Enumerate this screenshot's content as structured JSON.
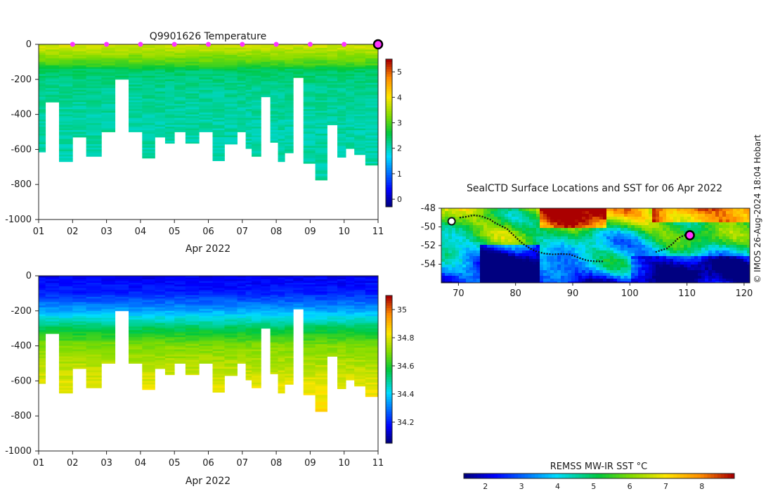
{
  "chart_data": [
    {
      "type": "heatmap",
      "panel": "temperature-section",
      "title": "Q9901626  Temperature",
      "xlabel": "Apr 2022",
      "ylabel": "",
      "xticks": [
        "01",
        "02",
        "03",
        "04",
        "05",
        "06",
        "07",
        "08",
        "09",
        "10",
        "11"
      ],
      "xlim": [
        1,
        11
      ],
      "ylim": [
        -1000,
        0
      ],
      "yticks": [
        0,
        -200,
        -400,
        -600,
        -800,
        -1000
      ],
      "colorbar": {
        "range": [
          -0.3,
          5.5
        ],
        "ticks": [
          "0",
          "1",
          "2",
          "3",
          "4",
          "5"
        ],
        "tick_values": [
          0,
          1,
          2,
          3,
          4,
          5
        ],
        "colormap": "jet-like"
      },
      "grid": false,
      "marker_days": [
        2,
        3,
        4,
        5,
        6,
        7,
        8,
        9,
        10
      ],
      "marker_color": "#ff33ff",
      "current_marker_day": 11,
      "profiles": [
        {
          "t": 1.05,
          "depth": 615
        },
        {
          "t": 1.35,
          "depth": 330
        },
        {
          "t": 1.85,
          "depth": 670
        },
        {
          "t": 2.15,
          "depth": 530
        },
        {
          "t": 2.65,
          "depth": 640
        },
        {
          "t": 3.05,
          "depth": 500
        },
        {
          "t": 3.45,
          "depth": 200
        },
        {
          "t": 3.85,
          "depth": 500
        },
        {
          "t": 4.25,
          "depth": 650
        },
        {
          "t": 4.6,
          "depth": 530
        },
        {
          "t": 4.85,
          "depth": 565
        },
        {
          "t": 5.15,
          "depth": 500
        },
        {
          "t": 5.5,
          "depth": 565
        },
        {
          "t": 5.95,
          "depth": 500
        },
        {
          "t": 6.3,
          "depth": 665
        },
        {
          "t": 6.65,
          "depth": 570
        },
        {
          "t": 7.05,
          "depth": 500
        },
        {
          "t": 7.15,
          "depth": 595
        },
        {
          "t": 7.4,
          "depth": 640
        },
        {
          "t": 7.7,
          "depth": 300
        },
        {
          "t": 7.95,
          "depth": 560
        },
        {
          "t": 8.15,
          "depth": 670
        },
        {
          "t": 8.35,
          "depth": 620
        },
        {
          "t": 8.65,
          "depth": 190
        },
        {
          "t": 8.95,
          "depth": 680
        },
        {
          "t": 9.35,
          "depth": 775
        },
        {
          "t": 9.65,
          "depth": 460
        },
        {
          "t": 9.95,
          "depth": 645
        },
        {
          "t": 10.15,
          "depth": 595
        },
        {
          "t": 10.45,
          "depth": 630
        },
        {
          "t": 10.8,
          "depth": 690
        }
      ],
      "temperature_profile_typical": [
        {
          "depth": 0,
          "value": 3.8
        },
        {
          "depth": 60,
          "value": 3.4
        },
        {
          "depth": 110,
          "value": 3.0
        },
        {
          "depth": 150,
          "value": 2.4
        },
        {
          "depth": 250,
          "value": 2.2
        },
        {
          "depth": 450,
          "value": 2.1
        },
        {
          "depth": 700,
          "value": 2.1
        }
      ]
    },
    {
      "type": "heatmap",
      "panel": "salinity-section",
      "title": "",
      "xlabel": "Apr 2022",
      "ylabel": "",
      "xticks": [
        "01",
        "02",
        "03",
        "04",
        "05",
        "06",
        "07",
        "08",
        "09",
        "10",
        "11"
      ],
      "xlim": [
        1,
        11
      ],
      "ylim": [
        -1000,
        0
      ],
      "yticks": [
        0,
        -200,
        -400,
        -600,
        -800,
        -1000
      ],
      "colorbar": {
        "range": [
          34.05,
          35.1
        ],
        "ticks": [
          "34.2",
          "34.4",
          "34.6",
          "34.8",
          "35"
        ],
        "tick_values": [
          34.2,
          34.4,
          34.6,
          34.8,
          35.0
        ],
        "colormap": "jet-like"
      },
      "grid": false,
      "salinity_profile_typical": [
        {
          "depth": 0,
          "value": 34.15
        },
        {
          "depth": 100,
          "value": 34.2
        },
        {
          "depth": 200,
          "value": 34.35
        },
        {
          "depth": 300,
          "value": 34.55
        },
        {
          "depth": 400,
          "value": 34.7
        },
        {
          "depth": 500,
          "value": 34.75
        },
        {
          "depth": 600,
          "value": 34.8
        },
        {
          "depth": 750,
          "value": 34.85
        }
      ]
    },
    {
      "type": "heatmap",
      "panel": "sst-map",
      "title": "SealCTD Surface Locations and SST for 06 Apr 2022",
      "xlabel": "",
      "ylabel": "",
      "xticks": [
        "70",
        "80",
        "90",
        "100",
        "110",
        "120"
      ],
      "xtick_values": [
        70,
        80,
        90,
        100,
        110,
        120
      ],
      "yticks": [
        "-48",
        "-50",
        "-52",
        "-54"
      ],
      "ytick_values": [
        -48,
        -50,
        -52,
        -54
      ],
      "xlim": [
        67,
        121
      ],
      "ylim": [
        -56,
        -48
      ],
      "track_color": "#111111",
      "track": [
        [
          70.2,
          -49.0
        ],
        [
          71.5,
          -48.9
        ],
        [
          72.6,
          -48.75
        ],
        [
          74.0,
          -48.85
        ],
        [
          75.5,
          -49.2
        ],
        [
          76.5,
          -49.6
        ],
        [
          77.5,
          -49.9
        ],
        [
          78.5,
          -50.2
        ],
        [
          79.5,
          -50.8
        ],
        [
          80.5,
          -51.4
        ],
        [
          81.5,
          -51.9
        ],
        [
          82.5,
          -52.3
        ],
        [
          83.5,
          -52.6
        ],
        [
          85.0,
          -52.85
        ],
        [
          86.5,
          -52.95
        ],
        [
          88.0,
          -52.9
        ],
        [
          89.5,
          -52.95
        ],
        [
          91.0,
          -53.3
        ],
        [
          92.5,
          -53.6
        ],
        [
          94.0,
          -53.7
        ],
        [
          95.5,
          -53.7
        ]
      ],
      "track_east": [
        [
          104.5,
          -52.7
        ],
        [
          105.5,
          -52.5
        ],
        [
          106.5,
          -52.3
        ],
        [
          107.5,
          -51.8
        ],
        [
          108.5,
          -51.2
        ],
        [
          109.5,
          -50.9
        ],
        [
          110.5,
          -50.9
        ]
      ],
      "start_location": [
        68.8,
        -49.4
      ],
      "current_location": [
        110.5,
        -50.9
      ],
      "current_color": "#ff33ff",
      "colorbar": {
        "label": "REMSS MW-IR SST °C",
        "range": [
          1.4,
          8.9
        ],
        "ticks": [
          "2",
          "3",
          "4",
          "5",
          "6",
          "7",
          "8"
        ],
        "tick_values": [
          2,
          3,
          4,
          5,
          6,
          7,
          8
        ],
        "colormap": "jet-like"
      }
    }
  ],
  "credit": "© IMOS 26-Aug-2024 18:04 Hobart"
}
